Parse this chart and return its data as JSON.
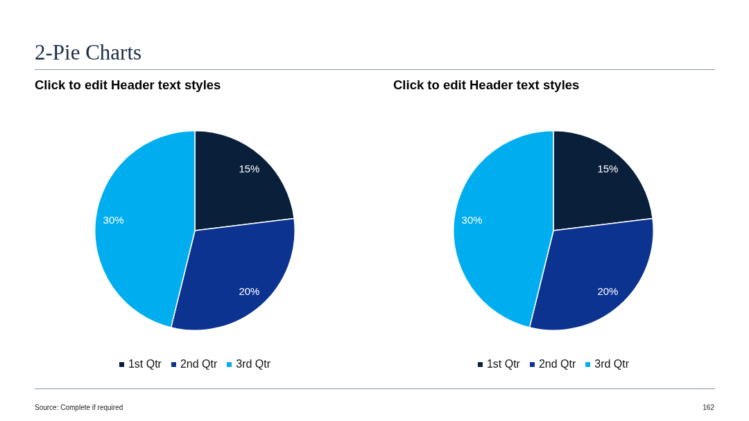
{
  "chart_data": [
    {
      "type": "other",
      "title": "2-Pie Charts",
      "annotations": [
        "Source: Complete if required",
        "162"
      ]
    },
    {
      "type": "pie",
      "title": "Click to edit Header text styles",
      "categories": [
        "1st Qtr",
        "2nd Qtr",
        "3rd Qtr"
      ],
      "values": [
        15,
        20,
        30
      ],
      "colors": [
        "#0a1f3a",
        "#0d3391",
        "#00aeef"
      ],
      "value_labels": [
        "15%",
        "20%",
        "30%"
      ],
      "legend": "bottom"
    },
    {
      "type": "pie",
      "title": "Click to edit Header text styles",
      "categories": [
        "1st Qtr",
        "2nd Qtr",
        "3rd Qtr"
      ],
      "values": [
        15,
        20,
        30
      ],
      "colors": [
        "#0a1f3a",
        "#0d3391",
        "#00aeef"
      ],
      "value_labels": [
        "15%",
        "20%",
        "30%"
      ],
      "legend": "bottom"
    }
  ]
}
